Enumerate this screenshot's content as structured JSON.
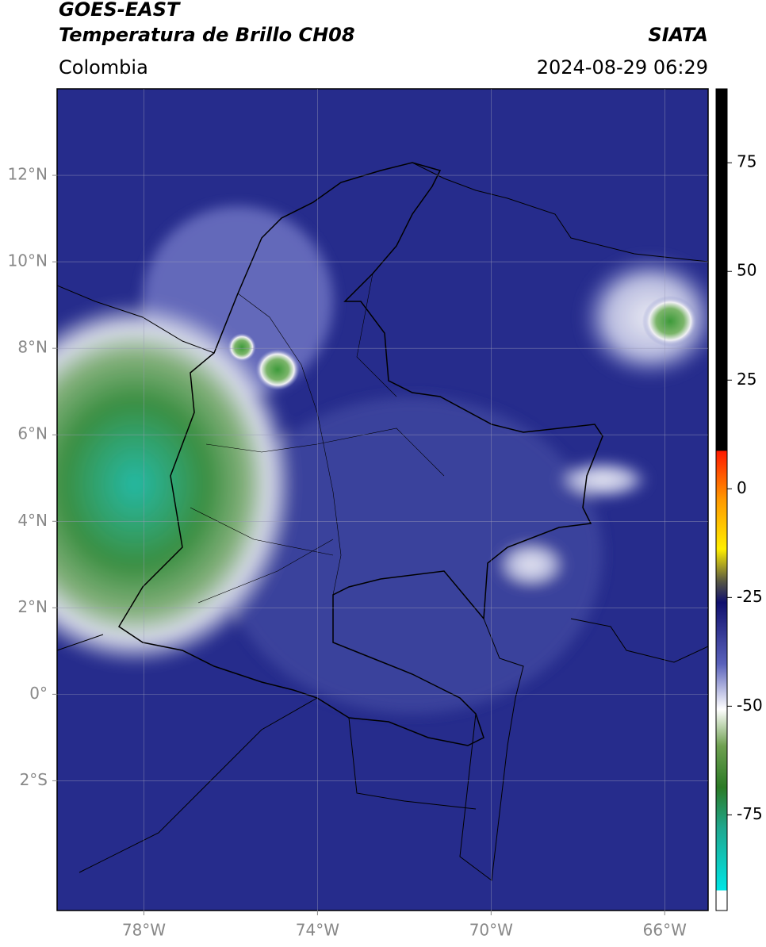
{
  "header": {
    "title": "GOES-EAST",
    "subtitle": "Temperatura de Brillo CH08",
    "region": "Colombia",
    "source": "SIATA",
    "timestamp": "2024-08-29 06:29"
  },
  "map": {
    "xlim": [
      -80,
      -65
    ],
    "ylim": [
      -5,
      14
    ],
    "grid": true,
    "xticks": [
      {
        "value": -78,
        "label": "78°W"
      },
      {
        "value": -74,
        "label": "74°W"
      },
      {
        "value": -70,
        "label": "70°W"
      },
      {
        "value": -66,
        "label": "66°W"
      }
    ],
    "yticks": [
      {
        "value": 12,
        "label": "12°N"
      },
      {
        "value": 10,
        "label": "10°N"
      },
      {
        "value": 8,
        "label": "8°N"
      },
      {
        "value": 6,
        "label": "6°N"
      },
      {
        "value": 4,
        "label": "4°N"
      },
      {
        "value": 2,
        "label": "2°N"
      },
      {
        "value": 0,
        "label": "0°"
      },
      {
        "value": -2,
        "label": "2°S"
      }
    ]
  },
  "colorbar": {
    "lim": [
      -97,
      92
    ],
    "ticks": [
      75,
      50,
      25,
      0,
      -25,
      -50,
      -75
    ]
  }
}
